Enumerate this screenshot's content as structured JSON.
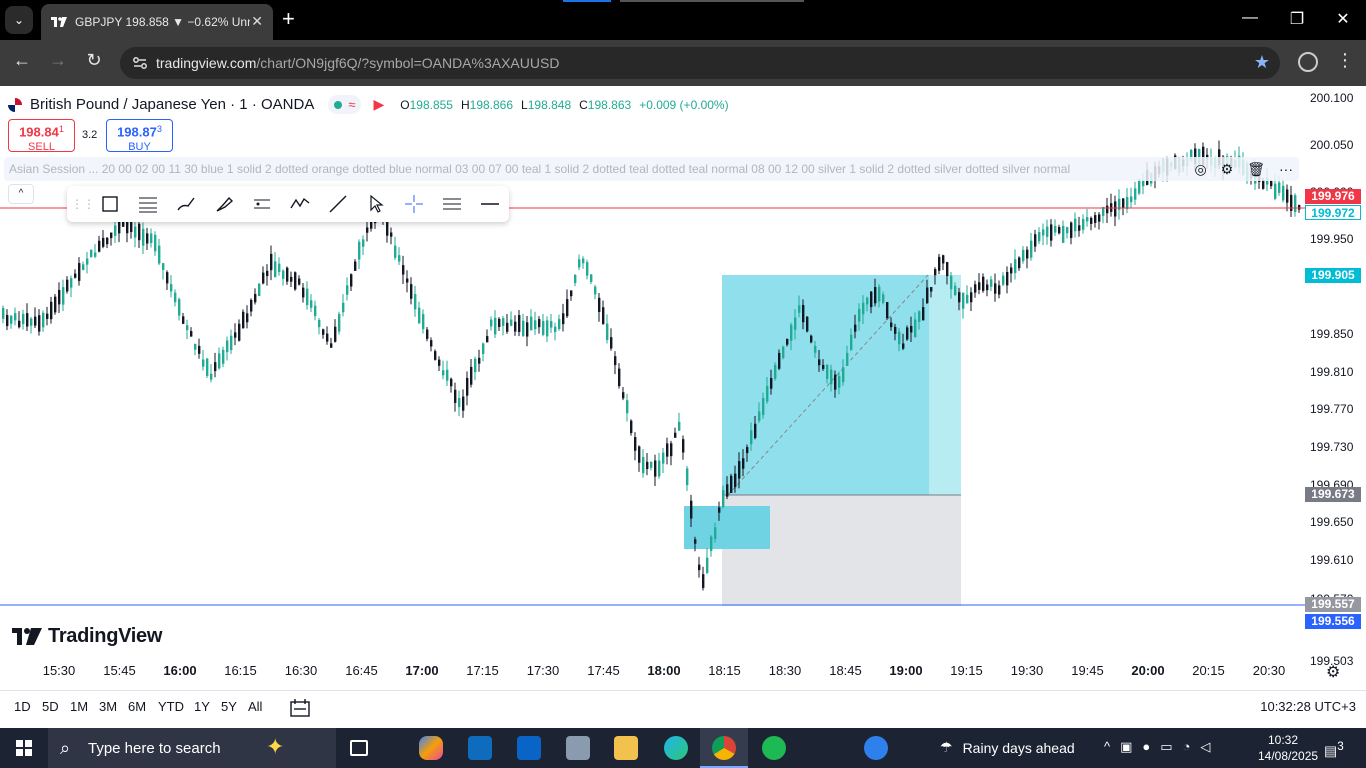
{
  "browser": {
    "tab_title": "GBPJPY 198.858 ▼ −0.62% Unn",
    "url_host": "tradingview.com",
    "url_path": "/chart/ON9jgf6Q/?symbol=OANDA%3AXAUUSD",
    "tab_close": "✕",
    "new_tab": "+",
    "back": "←",
    "forward": "→",
    "reload": "↻",
    "star": "★",
    "menu": "⋮",
    "minimize": "—",
    "maximize": "❐",
    "close": "✕",
    "tab_search": "⌄"
  },
  "symbol": {
    "name": "British Pound / Japanese Yen · 1 · OANDA",
    "badge_wave": "≈",
    "ohlc": [
      {
        "k": "O",
        "v": "198.855"
      },
      {
        "k": "H",
        "v": "198.866"
      },
      {
        "k": "L",
        "v": "198.848"
      },
      {
        "k": "C",
        "v": "198.863"
      },
      {
        "k": "",
        "v": "+0.009 (+0.00%)"
      }
    ]
  },
  "trade": {
    "sell_price_main": "198.84",
    "sell_price_sup": "1",
    "sell_label": "SELL",
    "spread": "3.2",
    "buy_price_main": "198.87",
    "buy_price_sup": "3",
    "buy_label": "BUY"
  },
  "session_indicator": {
    "text": "Asian Session ... 20 00 02 00 11 30 blue 1 solid 2 dotted orange dotted blue normal 03 00 07 00 teal 1 solid 2 dotted teal dotted teal normal 08 00 12 00 silver 1 solid 2 dotted silver dotted silver normal"
  },
  "collapse_label": "^",
  "toolbar": {
    "tools": [
      "rectangle-icon",
      "fib-lines-icon",
      "brush-icon",
      "highlighter-icon",
      "channel-icon",
      "pattern-icon",
      "trend-line-icon",
      "cursor-icon",
      "crosshair-icon",
      "settings-lines-icon",
      "horizontal-line-icon"
    ]
  },
  "price_axis": {
    "labels": [
      "200.100",
      "200.050",
      "200.000",
      "199.950",
      "199.850",
      "199.810",
      "199.770",
      "199.730",
      "199.690",
      "199.650",
      "199.610",
      "199.570",
      "199.503"
    ],
    "tags": [
      {
        "text": "199.976",
        "color": "#f23645",
        "fg": "#ffffff"
      },
      {
        "text": "199.972",
        "color": "#ffffff",
        "fg": "#00bcd4",
        "border": "#00bcd4"
      },
      {
        "text": "199.905",
        "color": "#00bcd4",
        "fg": "#ffffff"
      },
      {
        "text": "199.673",
        "color": "#787b86",
        "fg": "#ffffff"
      },
      {
        "text": "199.557",
        "color": "#9598a1",
        "fg": "#ffffff"
      },
      {
        "text": "199.556",
        "color": "#2962ff",
        "fg": "#ffffff"
      }
    ]
  },
  "logo_text": "TradingView",
  "time_axis": {
    "labels": [
      {
        "t": "15:30",
        "bold": false
      },
      {
        "t": "15:45",
        "bold": false
      },
      {
        "t": "16:00",
        "bold": true
      },
      {
        "t": "16:15",
        "bold": false
      },
      {
        "t": "16:30",
        "bold": false
      },
      {
        "t": "16:45",
        "bold": false
      },
      {
        "t": "17:00",
        "bold": true
      },
      {
        "t": "17:15",
        "bold": false
      },
      {
        "t": "17:30",
        "bold": false
      },
      {
        "t": "17:45",
        "bold": false
      },
      {
        "t": "18:00",
        "bold": true
      },
      {
        "t": "18:15",
        "bold": false
      },
      {
        "t": "18:30",
        "bold": false
      },
      {
        "t": "18:45",
        "bold": false
      },
      {
        "t": "19:00",
        "bold": true
      },
      {
        "t": "19:15",
        "bold": false
      },
      {
        "t": "19:30",
        "bold": false
      },
      {
        "t": "19:45",
        "bold": false
      },
      {
        "t": "20:00",
        "bold": true
      },
      {
        "t": "20:15",
        "bold": false
      },
      {
        "t": "20:30",
        "bold": false
      }
    ]
  },
  "ranges": [
    "1D",
    "5D",
    "1M",
    "3M",
    "6M",
    "YTD",
    "1Y",
    "5Y",
    "All"
  ],
  "chart_clock": "10:32:28 UTC+3",
  "taskbar": {
    "search_placeholder": "Type here to search",
    "weather": "Rainy days ahead",
    "time": "10:32",
    "date": "14/08/2025",
    "notifications": "3"
  },
  "colors": {
    "bull": "#22ab94",
    "bear": "#131722",
    "target_zone": "#7fdbe8",
    "stop_zone": "#e3e4e8",
    "ask_line": "#f23645",
    "bid_line": "#2962ff"
  }
}
